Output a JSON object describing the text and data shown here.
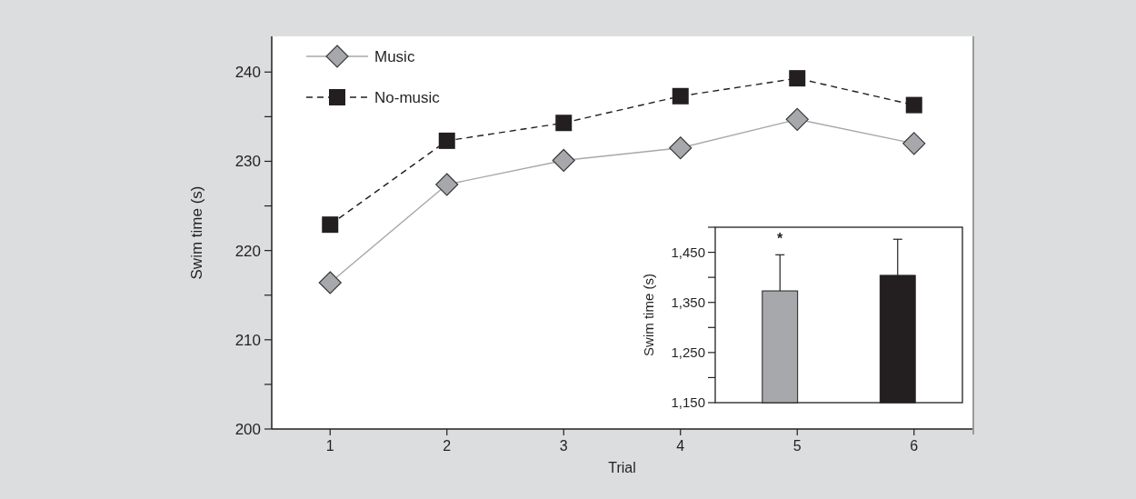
{
  "chart_data": [
    {
      "type": "line",
      "xlabel": "Trial",
      "ylabel": "Swim time (s)",
      "categories": [
        "1",
        "2",
        "3",
        "4",
        "5",
        "6"
      ],
      "series": [
        {
          "name": "Music",
          "color": "#a7a8ab",
          "values": [
            216.4,
            227.4,
            230.1,
            231.5,
            234.7,
            232.0
          ],
          "marker": "diamond",
          "line_style": "solid"
        },
        {
          "name": "No-music",
          "color": "#231f20",
          "values": [
            222.9,
            232.3,
            234.3,
            237.3,
            239.3,
            236.3
          ],
          "marker": "square",
          "line_style": "dashed"
        }
      ],
      "ylim": [
        200,
        244
      ],
      "yticks": [
        200,
        {
          "value": 205,
          "label": null
        },
        210,
        {
          "value": 215,
          "label": null
        },
        220,
        {
          "value": 225,
          "label": null
        },
        230,
        {
          "value": 235,
          "label": null
        },
        240
      ],
      "grid": false,
      "legend": "top left"
    },
    {
      "type": "bar",
      "ylabel": "Swim time (s)",
      "categories": [
        null,
        null
      ],
      "values": [
        1373,
        1404
      ],
      "colors": [
        "#a7a8ab",
        "#231f20"
      ],
      "errors": [
        [
          1373,
          1445
        ],
        [
          1404,
          1476
        ]
      ],
      "ylim": [
        1150,
        1500
      ],
      "yticks": [
        {
          "value": 1150,
          "label": "1,150"
        },
        {
          "value": 1200,
          "label": null
        },
        {
          "value": 1250,
          "label": "1,250"
        },
        {
          "value": 1300,
          "label": null
        },
        {
          "value": 1350,
          "label": "1,350"
        },
        {
          "value": 1400,
          "label": null
        },
        {
          "value": 1450,
          "label": "1,450"
        },
        {
          "value": 1500,
          "label": null
        }
      ],
      "annotations": [
        {
          "text": "*",
          "y": 1445
        }
      ]
    }
  ]
}
